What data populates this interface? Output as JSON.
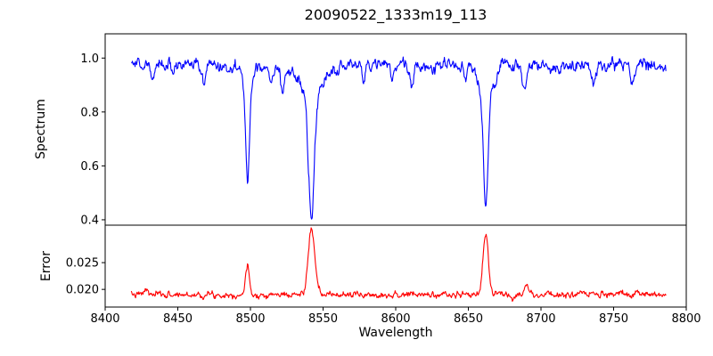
{
  "title": "20090522_1333m19_113",
  "background": "#ffffff",
  "chart_data": [
    {
      "type": "line",
      "name": "spectrum",
      "ylabel": "Spectrum",
      "color": "#0000ff",
      "seed": 42,
      "n_points": 1000,
      "xlim": [
        8400,
        8800
      ],
      "ylim": [
        0.38,
        1.09
      ],
      "yticks": [
        1.0,
        0.8,
        0.6,
        0.4
      ],
      "ytick_labels": [
        "1.0",
        "0.8",
        "0.6",
        "0.4"
      ],
      "x_start": 8418,
      "x_end": 8786,
      "continuum": 0.975,
      "noise_sigma": 0.016,
      "absorption_lines": [
        {
          "center": 8498,
          "min_value": 0.54,
          "core_sigma": 1.2,
          "wing_sigma": 3.0
        },
        {
          "center": 8542,
          "min_value": 0.41,
          "core_sigma": 1.9,
          "wing_sigma": 6.5
        },
        {
          "center": 8662,
          "min_value": 0.44,
          "core_sigma": 1.5,
          "wing_sigma": 4.5
        }
      ],
      "weak_lines": [
        {
          "center": 8433,
          "depth": 0.055,
          "sigma": 1.0
        },
        {
          "center": 8447,
          "depth": 0.04,
          "sigma": 0.9
        },
        {
          "center": 8468,
          "depth": 0.075,
          "sigma": 1.2
        },
        {
          "center": 8514,
          "depth": 0.06,
          "sigma": 1.0
        },
        {
          "center": 8522,
          "depth": 0.085,
          "sigma": 1.2
        },
        {
          "center": 8560,
          "depth": 0.045,
          "sigma": 1.0
        },
        {
          "center": 8578,
          "depth": 0.055,
          "sigma": 1.1
        },
        {
          "center": 8598,
          "depth": 0.04,
          "sigma": 0.9
        },
        {
          "center": 8611,
          "depth": 0.065,
          "sigma": 1.2
        },
        {
          "center": 8648,
          "depth": 0.055,
          "sigma": 1.0
        },
        {
          "center": 8688,
          "depth": 0.095,
          "sigma": 1.4
        },
        {
          "center": 8713,
          "depth": 0.05,
          "sigma": 1.0
        },
        {
          "center": 8736,
          "depth": 0.075,
          "sigma": 1.2
        },
        {
          "center": 8763,
          "depth": 0.065,
          "sigma": 1.1
        }
      ]
    },
    {
      "type": "line",
      "name": "error",
      "ylabel": "Error",
      "xlabel": "Wavelength",
      "color": "#ff0000",
      "seed": 7,
      "n_points": 1000,
      "xlim": [
        8400,
        8800
      ],
      "ylim": [
        0.0167,
        0.032
      ],
      "yticks": [
        0.025,
        0.02
      ],
      "ytick_labels": [
        "0.025",
        "0.020"
      ],
      "xticks": [
        8400,
        8450,
        8500,
        8550,
        8600,
        8650,
        8700,
        8750,
        8800
      ],
      "xtick_labels": [
        "8400",
        "8450",
        "8500",
        "8550",
        "8600",
        "8650",
        "8700",
        "8750",
        "8800"
      ],
      "x_start": 8418,
      "x_end": 8786,
      "baseline": 0.019,
      "noise_sigma": 0.00042,
      "peaks": [
        {
          "center": 8498,
          "peak_value": 0.024,
          "sigma": 1.4
        },
        {
          "center": 8542,
          "peak_value": 0.0313,
          "sigma": 2.2
        },
        {
          "center": 8662,
          "peak_value": 0.0305,
          "sigma": 1.8
        }
      ],
      "minor_peaks": [
        {
          "center": 8428,
          "peak_value": 0.02,
          "sigma": 1.2
        },
        {
          "center": 8690,
          "peak_value": 0.0215,
          "sigma": 1.2
        },
        {
          "center": 8766,
          "peak_value": 0.0199,
          "sigma": 1.0
        }
      ]
    }
  ]
}
